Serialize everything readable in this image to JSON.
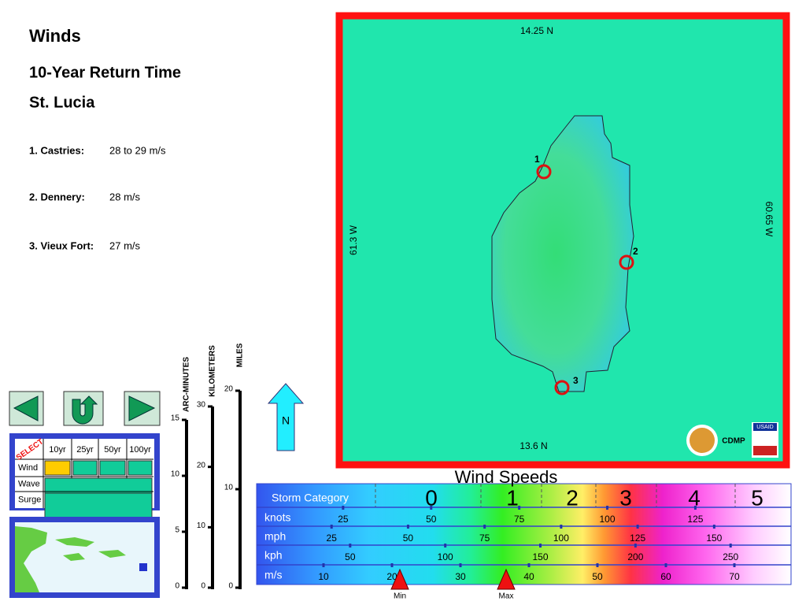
{
  "header": {
    "title": "Winds",
    "subtitle": "10-Year Return Time",
    "location": "St. Lucia"
  },
  "sites": [
    {
      "label": "1. Castries:",
      "value": "28 to 29 m/s"
    },
    {
      "label": "2. Dennery:",
      "value": "28 m/s"
    },
    {
      "label": "3. Vieux Fort:",
      "value": "27 m/s"
    }
  ],
  "selector": {
    "select_label": "SELECT",
    "columns": [
      "10yr",
      "25yr",
      "50yr",
      "100yr"
    ],
    "rows": [
      "Wind",
      "Wave",
      "Surge"
    ]
  },
  "scale_bars": [
    {
      "label": "ARC-MINUTES",
      "ticks": [
        15,
        10,
        5,
        0
      ]
    },
    {
      "label": "KILOMETERS",
      "ticks": [
        30,
        20,
        10,
        0
      ]
    },
    {
      "label": "MILES",
      "ticks": [
        20,
        10,
        0
      ]
    }
  ],
  "north": "N",
  "map": {
    "top": "14.25 N",
    "bottom": "13.6 N",
    "left": "61.3 W",
    "right": "60.65 W",
    "markers": [
      "1",
      "2",
      "3"
    ],
    "logo_text": "CDMP",
    "usaid": "USAID"
  },
  "legend": {
    "title": "Wind Speeds",
    "category_label": "Storm Category",
    "categories": [
      "0",
      "1",
      "2",
      "3",
      "4",
      "5"
    ],
    "units": [
      {
        "name": "knots",
        "ticks": [
          25,
          50,
          75,
          100,
          125
        ]
      },
      {
        "name": "mph",
        "ticks": [
          25,
          50,
          75,
          100,
          125,
          150
        ]
      },
      {
        "name": "kph",
        "ticks": [
          50,
          100,
          150,
          200,
          250
        ]
      },
      {
        "name": "m/s",
        "ticks": [
          10,
          20,
          30,
          40,
          50,
          60,
          70
        ]
      }
    ],
    "pointers": [
      "Min",
      "Max"
    ]
  }
}
